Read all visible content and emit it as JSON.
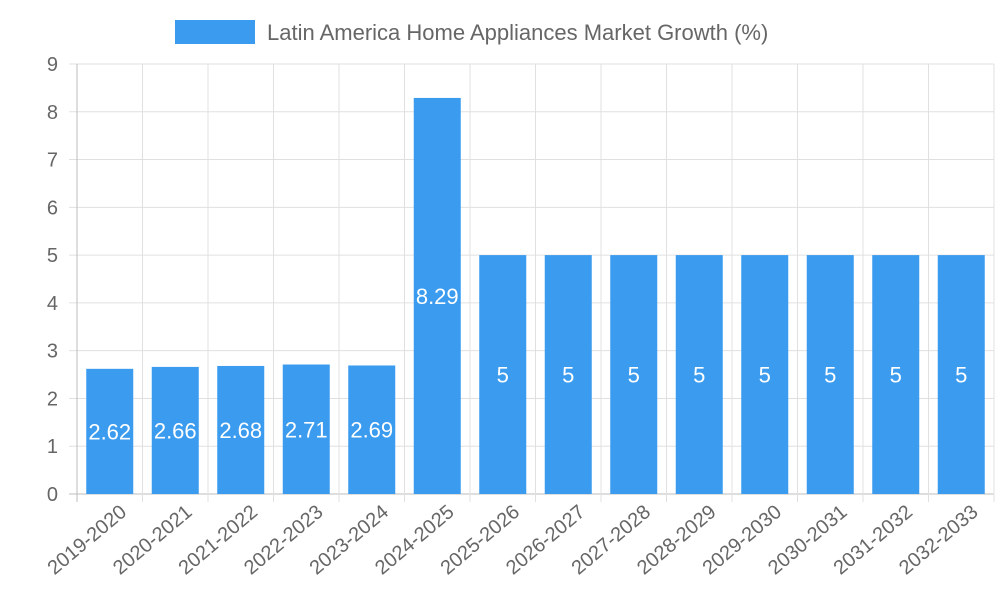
{
  "chart_data": {
    "type": "bar",
    "title": "",
    "legend": {
      "position": "top",
      "label": "Latin America Home Appliances Market Growth (%)"
    },
    "categories": [
      "2019-2020",
      "2020-2021",
      "2021-2022",
      "2022-2023",
      "2023-2024",
      "2024-2025",
      "2025-2026",
      "2026-2027",
      "2027-2028",
      "2028-2029",
      "2029-2030",
      "2030-2031",
      "2031-2032",
      "2032-2033"
    ],
    "series": [
      {
        "name": "Latin America Home Appliances Market Growth (%)",
        "values": [
          2.62,
          2.66,
          2.68,
          2.71,
          2.69,
          8.29,
          5,
          5,
          5,
          5,
          5,
          5,
          5,
          5
        ]
      }
    ],
    "data_labels": [
      "2.62",
      "2.66",
      "2.68",
      "2.71",
      "2.69",
      "8.29",
      "5",
      "5",
      "5",
      "5",
      "5",
      "5",
      "5",
      "5"
    ],
    "y_ticks": [
      "0",
      "1",
      "2",
      "3",
      "4",
      "5",
      "6",
      "7",
      "8",
      "9"
    ],
    "xlabel": "",
    "ylabel": "",
    "ylim": [
      0,
      9
    ],
    "grid": true,
    "colors": {
      "bar": "#3a9bef",
      "grid": "#e0e0e0",
      "axis": "#bdbdbd",
      "text": "#666666",
      "label": "#ffffff"
    }
  }
}
